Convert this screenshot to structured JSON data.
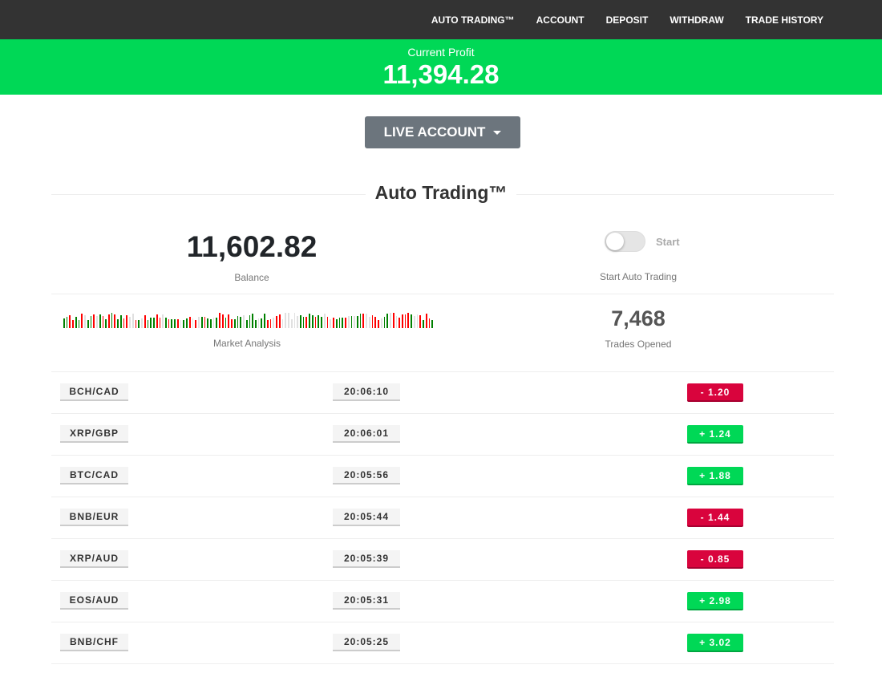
{
  "nav": [
    "AUTO TRADING™",
    "ACCOUNT",
    "DEPOSIT",
    "WITHDRAW",
    "TRADE HISTORY"
  ],
  "profit": {
    "label": "Current Profit",
    "value": "11,394.28"
  },
  "account_button": "LIVE ACCOUNT",
  "section_title": "Auto Trading™",
  "balance": {
    "value": "11,602.82",
    "label": "Balance"
  },
  "toggle": {
    "label": "Start",
    "caption": "Start Auto Trading",
    "on": false
  },
  "market": {
    "label": "Market Analysis"
  },
  "trades": {
    "value": "7,468",
    "label": "Trades Opened"
  },
  "colors": {
    "positive": "#00d856",
    "negative": "#d9043d",
    "bar_up": "#008000",
    "bar_down": "#ff0000",
    "bar_neutral": "#e0e0e0"
  },
  "rows": [
    {
      "pair": "BCH/CAD",
      "time": "20:06:10",
      "change": "-  1.20",
      "dir": "neg"
    },
    {
      "pair": "XRP/GBP",
      "time": "20:06:01",
      "change": "+  1.24",
      "dir": "pos"
    },
    {
      "pair": "BTC/CAD",
      "time": "20:05:56",
      "change": "+  1.88",
      "dir": "pos"
    },
    {
      "pair": "BNB/EUR",
      "time": "20:05:44",
      "change": "-  1.44",
      "dir": "neg"
    },
    {
      "pair": "XRP/AUD",
      "time": "20:05:39",
      "change": "-  0.85",
      "dir": "neg"
    },
    {
      "pair": "EOS/AUD",
      "time": "20:05:31",
      "change": "+  2.98",
      "dir": "pos"
    },
    {
      "pair": "BNB/CHF",
      "time": "20:05:25",
      "change": "+  3.02",
      "dir": "pos"
    }
  ]
}
